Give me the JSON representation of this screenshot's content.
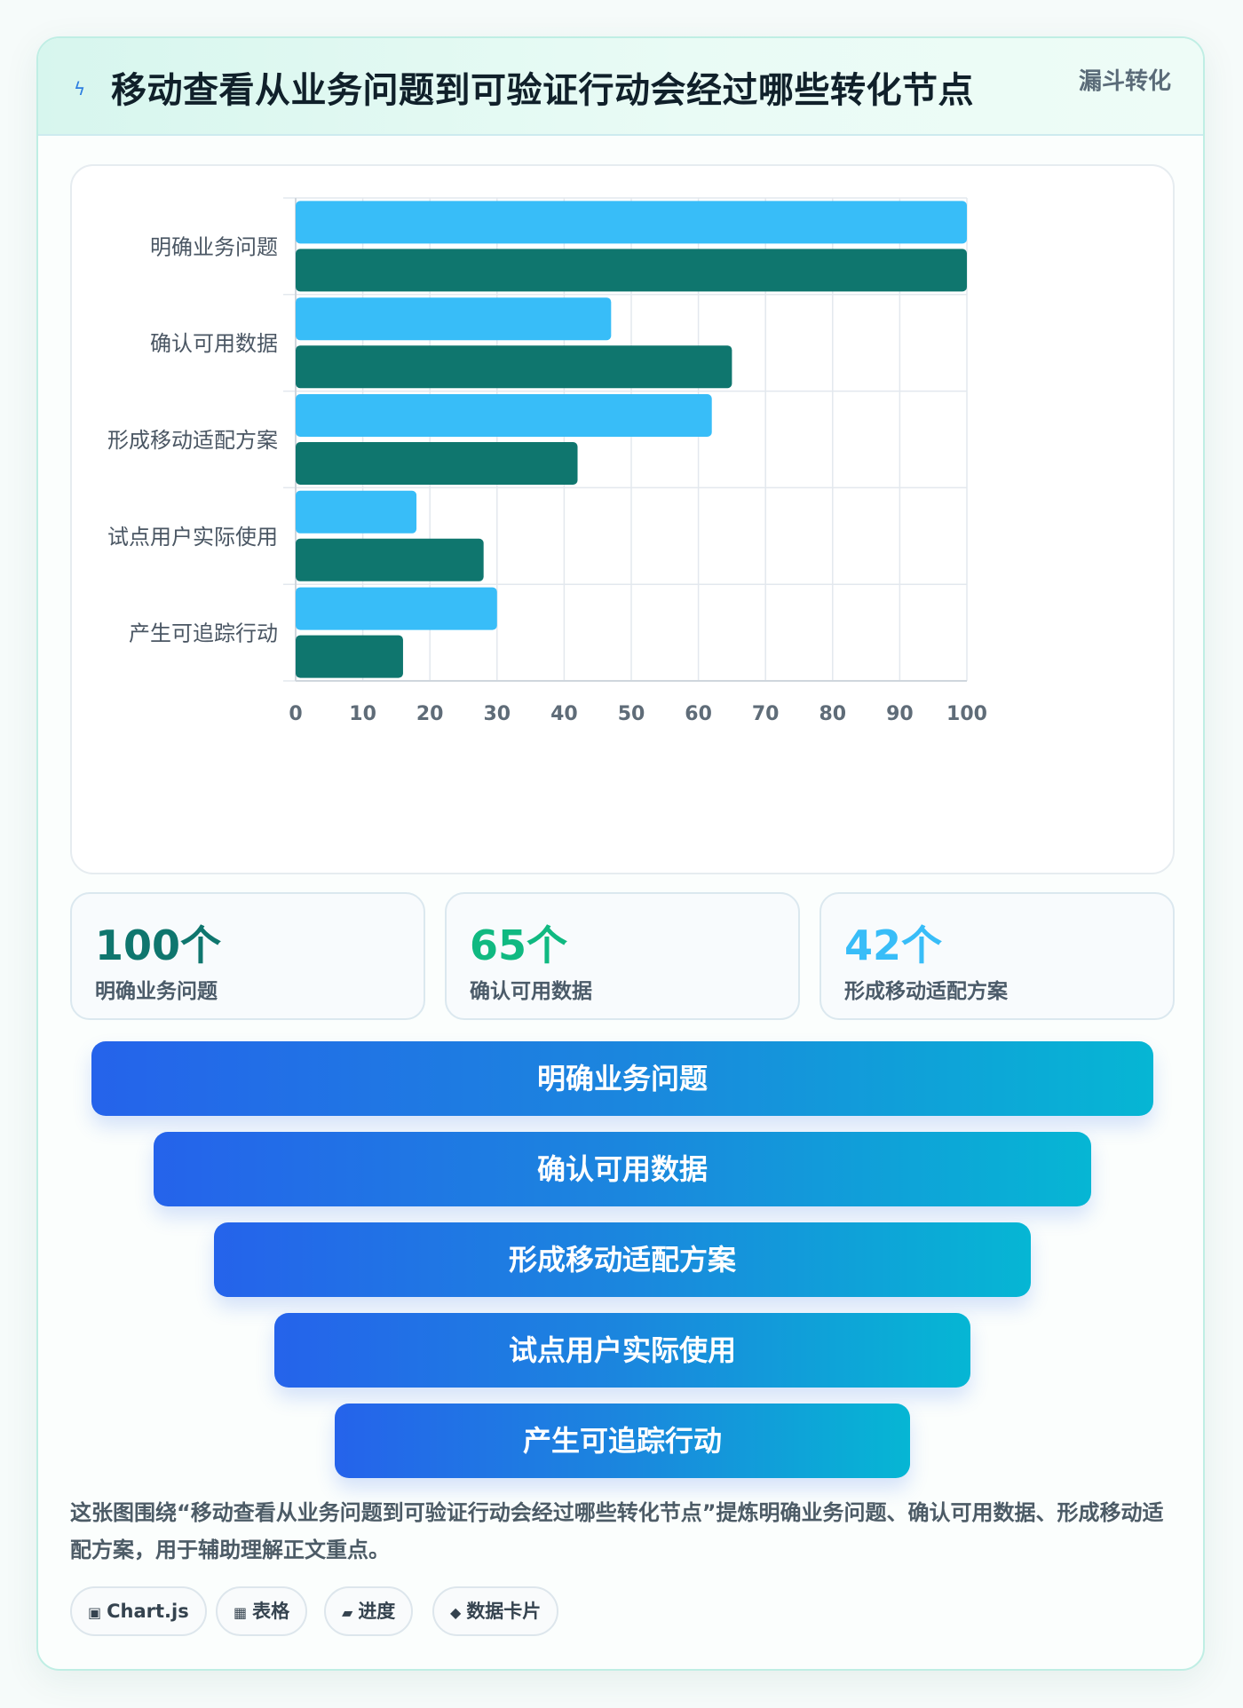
{
  "header": {
    "title": "移动查看从业务问题到可验证行动会经过哪些转化节点",
    "tag": "漏斗转化",
    "icon": "lightning-icon"
  },
  "colors": {
    "series_a": "#38bdf8",
    "series_b": "#0f766e",
    "stat1": "#0f766e",
    "stat2": "#10b981",
    "stat3": "#38bdf8",
    "funnel_start": "#2563eb",
    "funnel_end": "#06b6d4"
  },
  "chart_data": {
    "type": "bar",
    "orientation": "horizontal",
    "categories": [
      "明确业务问题",
      "确认可用数据",
      "形成移动适配方案",
      "试点用户实际使用",
      "产生可追踪行动"
    ],
    "series": [
      {
        "values": [
          100,
          47,
          62,
          18,
          30
        ]
      },
      {
        "values": [
          100,
          65,
          42,
          28,
          16
        ]
      }
    ],
    "xlim": [
      0,
      100
    ],
    "xticks": [
      0,
      10,
      20,
      30,
      40,
      50,
      60,
      70,
      80,
      90,
      100
    ],
    "grid": true,
    "legend": "none"
  },
  "stats": [
    {
      "value": "100个",
      "label": "明确业务问题"
    },
    {
      "value": "65个",
      "label": "确认可用数据"
    },
    {
      "value": "42个",
      "label": "形成移动适配方案"
    }
  ],
  "funnel": [
    {
      "label": "明确业务问题"
    },
    {
      "label": "确认可用数据"
    },
    {
      "label": "形成移动适配方案"
    },
    {
      "label": "试点用户实际使用"
    },
    {
      "label": "产生可追踪行动"
    }
  ],
  "description": "这张图围绕“移动查看从业务问题到可验证行动会经过哪些转化节点”提炼明确业务问题、确认可用数据、形成移动适配方案，用于辅助理解正文重点。",
  "chips": [
    {
      "icon": "▣",
      "icon_name": "chart-icon",
      "label": "Chart.js"
    },
    {
      "icon": "▦",
      "icon_name": "table-icon",
      "label": "表格"
    },
    {
      "icon": "▰",
      "icon_name": "progress-icon",
      "label": "进度"
    },
    {
      "icon": "◆",
      "icon_name": "diamond-icon",
      "label": "数据卡片"
    }
  ]
}
